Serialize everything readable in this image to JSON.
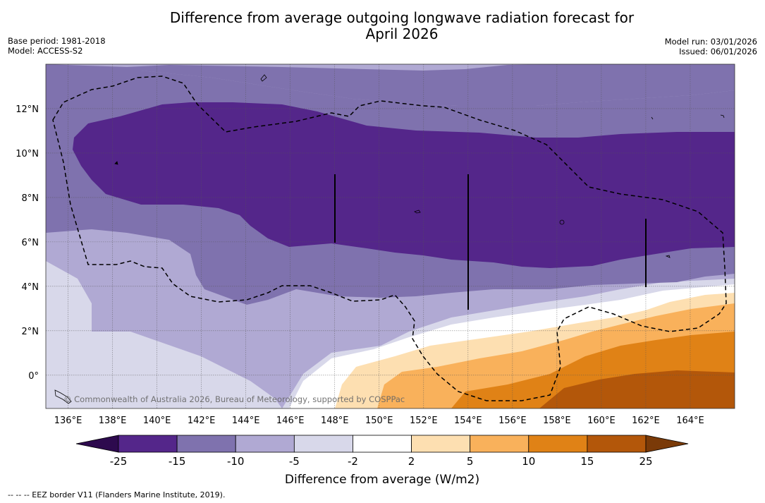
{
  "title_line1": "Difference from average outgoing longwave radiation forecast for",
  "title_line2": "April 2026",
  "meta_left": [
    "Base period: 1981-2018",
    "Model: ACCESS-S2"
  ],
  "meta_right": [
    "Model run: 03/01/2026",
    "Issued: 06/01/2026"
  ],
  "map": {
    "lon_range": [
      135,
      166
    ],
    "lat_range": [
      -1.5,
      14
    ],
    "lon_ticks": [
      "136°E",
      "138°E",
      "140°E",
      "142°E",
      "144°E",
      "146°E",
      "148°E",
      "150°E",
      "152°E",
      "154°E",
      "156°E",
      "158°E",
      "160°E",
      "162°E",
      "164°E"
    ],
    "lon_tick_values": [
      136,
      138,
      140,
      142,
      144,
      146,
      148,
      150,
      152,
      154,
      156,
      158,
      160,
      162,
      164
    ],
    "lat_ticks": [
      "12°N",
      "10°N",
      "8°N",
      "6°N",
      "4°N",
      "2°N",
      "0°"
    ],
    "lat_tick_values": [
      12,
      10,
      8,
      6,
      4,
      2,
      0
    ],
    "copyright": "© Commonwealth of Australia 2026, Bureau of Meteorology, supported by COSPPac"
  },
  "colorbar": {
    "title": "Difference from average (W/m2)",
    "tick_labels": [
      "-25",
      "-15",
      "-10",
      "-5",
      "-2",
      "2",
      "5",
      "10",
      "15",
      "25"
    ],
    "colors": {
      "below": "#2d0a4e",
      "bins": [
        "#54268a",
        "#7f72ae",
        "#b0a9d3",
        "#d8d8ea",
        "#ffffff",
        "#fddfb1",
        "#f9b15b",
        "#e08216",
        "#b3570a"
      ],
      "above": "#7a3a08"
    }
  },
  "footer": "--  --  -- EEZ border V11 (Flanders Marine Institute, 2019)."
}
